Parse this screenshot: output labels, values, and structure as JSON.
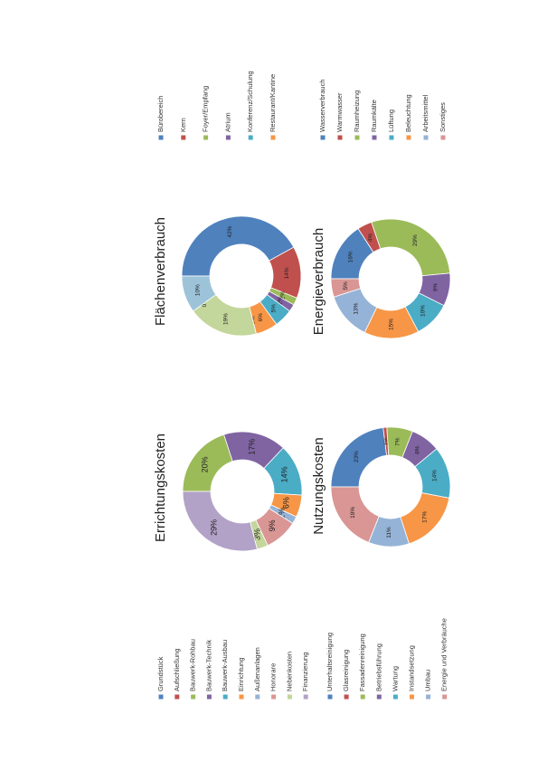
{
  "chart_data": [
    {
      "type": "donut",
      "title": "Errichtungskosten",
      "categories": [
        "Grundstück",
        "Aufschließung",
        "Bauwerk-Rohbau",
        "Bauwerk-Technik",
        "Bauwerk-Ausbau",
        "Einrichtung",
        "Außenanlagen",
        "Honorare",
        "Nebenkosten",
        "Finanzierung"
      ],
      "values": [
        0,
        0,
        20,
        17,
        14,
        6,
        2,
        9,
        3,
        29
      ],
      "value_labels": [
        "0%",
        "0%",
        "20%",
        "17%",
        "14%",
        "6%",
        "2%",
        "9%",
        "3%",
        "29%"
      ],
      "colors": [
        "#4f81bd",
        "#c0504d",
        "#9bbb59",
        "#8064a2",
        "#4bacc6",
        "#f79646",
        "#95b3d7",
        "#d99694",
        "#c3d69b",
        "#b3a2c7"
      ]
    },
    {
      "type": "donut",
      "title": "Nutzungskosten",
      "categories": [
        "Unterhaltsreinigung",
        "Glasreinigung",
        "Fassadenreinigung",
        "Betriebsführung",
        "Wartung",
        "Instandsetzung",
        "Umbau",
        "Energie und Verbräuche"
      ],
      "values": [
        23,
        1,
        7,
        8,
        14,
        17,
        11,
        19
      ],
      "value_labels": [
        "23%",
        "1%",
        "7%",
        "8%",
        "14%",
        "17%",
        "11%",
        "19%"
      ],
      "colors": [
        "#4f81bd",
        "#c0504d",
        "#9bbb59",
        "#8064a2",
        "#4bacc6",
        "#f79646",
        "#95b3d7",
        "#d99694"
      ]
    },
    {
      "type": "donut",
      "title": "Flächenverbrauch",
      "categories": [
        "Bürobereich",
        "Kern",
        "Foyer/Empfang",
        "Atrium",
        "Konferenz/Schulung",
        "Restaurant/Kantine",
        null,
        null,
        null,
        null
      ],
      "values": [
        42,
        14,
        2,
        2,
        5,
        6,
        0,
        19,
        0,
        10
      ],
      "value_labels": [
        "42%",
        "14%",
        "2%",
        "2%",
        "5%",
        "6%",
        "0%",
        "19%",
        "0%",
        "10%"
      ],
      "colors": [
        "#4f81bd",
        "#c0504d",
        "#9bbb59",
        "#8064a2",
        "#4bacc6",
        "#f79646",
        "#d99694",
        "#c3d69b",
        "#b3a2c7",
        "#9dc3d9"
      ]
    },
    {
      "type": "donut",
      "title": "Energieverbrauch",
      "categories": [
        "Wasserverbrauch",
        "Warmwasser",
        "Raumheizung",
        "Raumkälte",
        "Lüftung",
        "Beleuchtung",
        "Arbeitsmittel",
        "Sonstiges"
      ],
      "values": [
        16,
        4,
        29,
        9,
        10,
        15,
        13,
        5
      ],
      "value_labels": [
        "16%",
        "4%",
        "29%",
        "9%",
        "10%",
        "15%",
        "13%",
        "5%"
      ],
      "colors": [
        "#4f81bd",
        "#c0504d",
        "#9bbb59",
        "#8064a2",
        "#4bacc6",
        "#f79646",
        "#95b3d7",
        "#d99694"
      ]
    }
  ]
}
